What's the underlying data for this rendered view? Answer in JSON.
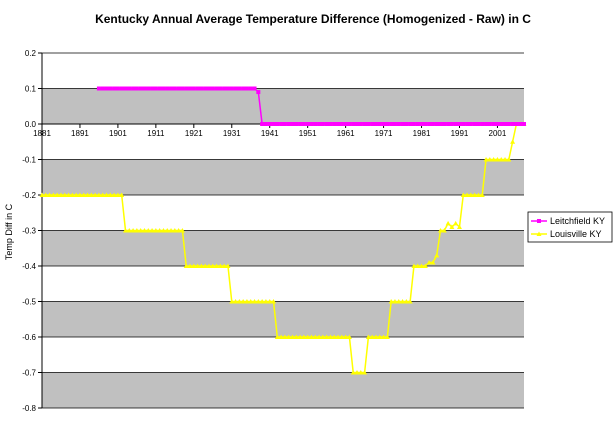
{
  "chart_data": {
    "type": "line",
    "title": "Kentucky Annual Average Temperature Difference (Homogenized - Raw) in C",
    "xlabel": "",
    "ylabel": "Temp Diff in C",
    "xlim": [
      1881,
      2008
    ],
    "ylim": [
      -0.8,
      0.2
    ],
    "grid": true,
    "legend_position": "right",
    "x_ticks": [
      "1881",
      "1891",
      "1901",
      "1911",
      "1921",
      "1931",
      "1941",
      "1951",
      "1961",
      "1971",
      "1981",
      "1991",
      "2001"
    ],
    "y_ticks": [
      "0.2",
      "0.1",
      "0.0",
      "-0.1",
      "-0.2",
      "-0.3",
      "-0.4",
      "-0.5",
      "-0.6",
      "-0.7",
      "-0.8"
    ],
    "series": [
      {
        "name": "Leitchfield KY",
        "color": "#ff00ff",
        "marker": "square",
        "segments": [
          {
            "from": 1896,
            "to": 1937,
            "value": 0.1
          },
          {
            "from": 1938,
            "to": 1938,
            "value": 0.09
          },
          {
            "from": 1939,
            "to": 2008,
            "value": 0.0
          }
        ]
      },
      {
        "name": "Louisville KY",
        "color": "#ffff00",
        "marker": "triangle",
        "segments": [
          {
            "from": 1881,
            "to": 1902,
            "value": -0.2
          },
          {
            "from": 1903,
            "to": 1915,
            "value": -0.3
          },
          {
            "from": 1916,
            "to": 1918,
            "value": -0.3
          },
          {
            "from": 1919,
            "to": 1930,
            "value": -0.4
          },
          {
            "from": 1931,
            "to": 1942,
            "value": -0.5
          },
          {
            "from": 1943,
            "to": 1962,
            "value": -0.6
          },
          {
            "from": 1963,
            "to": 1966,
            "value": -0.7
          },
          {
            "from": 1967,
            "to": 1972,
            "value": -0.6
          },
          {
            "from": 1973,
            "to": 1978,
            "value": -0.5
          },
          {
            "from": 1979,
            "to": 1982,
            "value": -0.4
          },
          {
            "from": 1983,
            "to": 1984,
            "value": -0.39
          },
          {
            "from": 1985,
            "to": 1985,
            "value": -0.37
          },
          {
            "from": 1986,
            "to": 1986,
            "value": -0.3
          },
          {
            "from": 1987,
            "to": 1987,
            "value": -0.3
          },
          {
            "from": 1988,
            "to": 1988,
            "value": -0.28
          },
          {
            "from": 1989,
            "to": 1989,
            "value": -0.29
          },
          {
            "from": 1990,
            "to": 1990,
            "value": -0.28
          },
          {
            "from": 1991,
            "to": 1991,
            "value": -0.29
          },
          {
            "from": 1992,
            "to": 1997,
            "value": -0.2
          },
          {
            "from": 1998,
            "to": 2004,
            "value": -0.1
          },
          {
            "from": 2005,
            "to": 2005,
            "value": -0.05
          },
          {
            "from": 2006,
            "to": 2008,
            "value": 0.0
          }
        ]
      }
    ]
  }
}
